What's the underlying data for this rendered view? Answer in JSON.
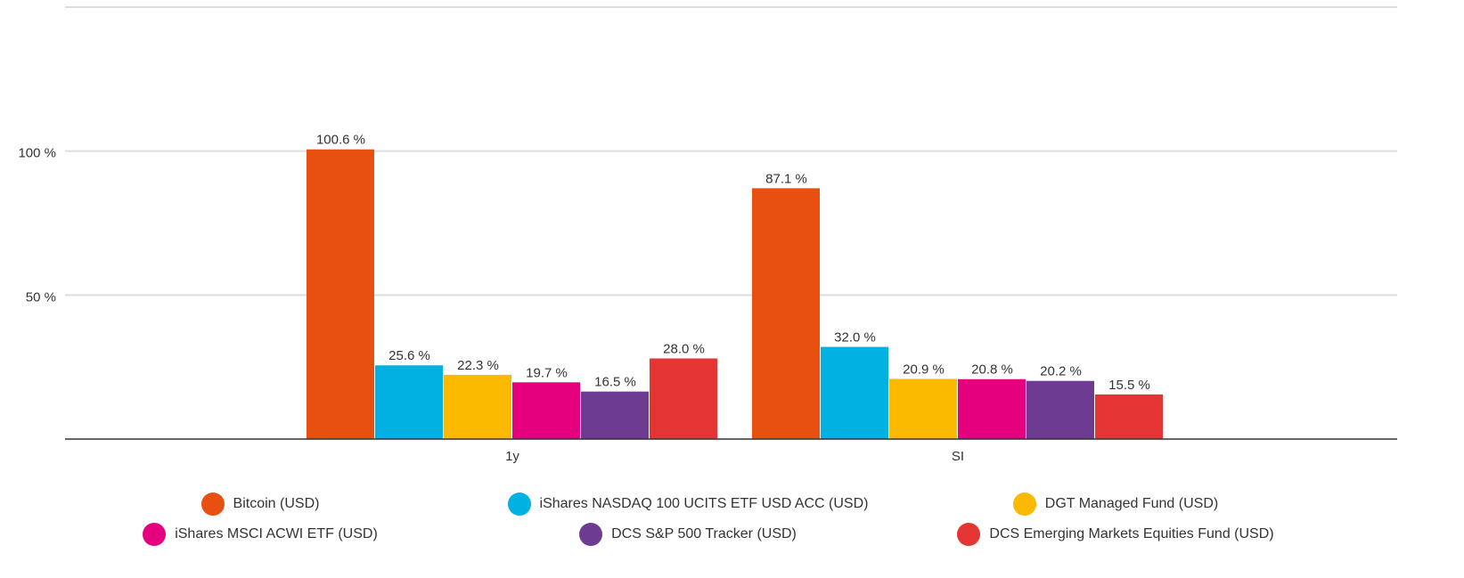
{
  "chart_data": {
    "type": "bar",
    "categories": [
      "1y",
      "SI"
    ],
    "series": [
      {
        "name": "Bitcoin (USD)",
        "color": "#e85011",
        "values": [
          100.6,
          87.1
        ],
        "value_labels": [
          "100.6 %",
          "87.1 %"
        ]
      },
      {
        "name": "iShares NASDAQ 100 UCITS ETF USD ACC (USD)",
        "color": "#00b1e1",
        "values": [
          25.6,
          32.0
        ],
        "value_labels": [
          "25.6 %",
          "32.0 %"
        ]
      },
      {
        "name": "DGT Managed Fund (USD)",
        "color": "#fbb900",
        "values": [
          22.3,
          20.9
        ],
        "value_labels": [
          "22.3 %",
          "20.9 %"
        ]
      },
      {
        "name": "iShares MSCI ACWI ETF (USD)",
        "color": "#e5007d",
        "values": [
          19.7,
          20.8
        ],
        "value_labels": [
          "19.7 %",
          "20.8 %"
        ]
      },
      {
        "name": "DCS S&P 500 Tracker (USD)",
        "color": "#6d3b91",
        "values": [
          16.5,
          20.2
        ],
        "value_labels": [
          "16.5 %",
          "20.2 %"
        ]
      },
      {
        "name": "DCS Emerging Markets Equities Fund (USD)",
        "color": "#e53434",
        "values": [
          28.0,
          15.5
        ],
        "value_labels": [
          "28.0 %",
          "15.5 %"
        ]
      }
    ],
    "ylim": [
      0,
      150
    ],
    "yticks": [
      {
        "value": 50,
        "label": "50 %"
      },
      {
        "value": 100,
        "label": "100 %"
      }
    ],
    "grid": true
  }
}
